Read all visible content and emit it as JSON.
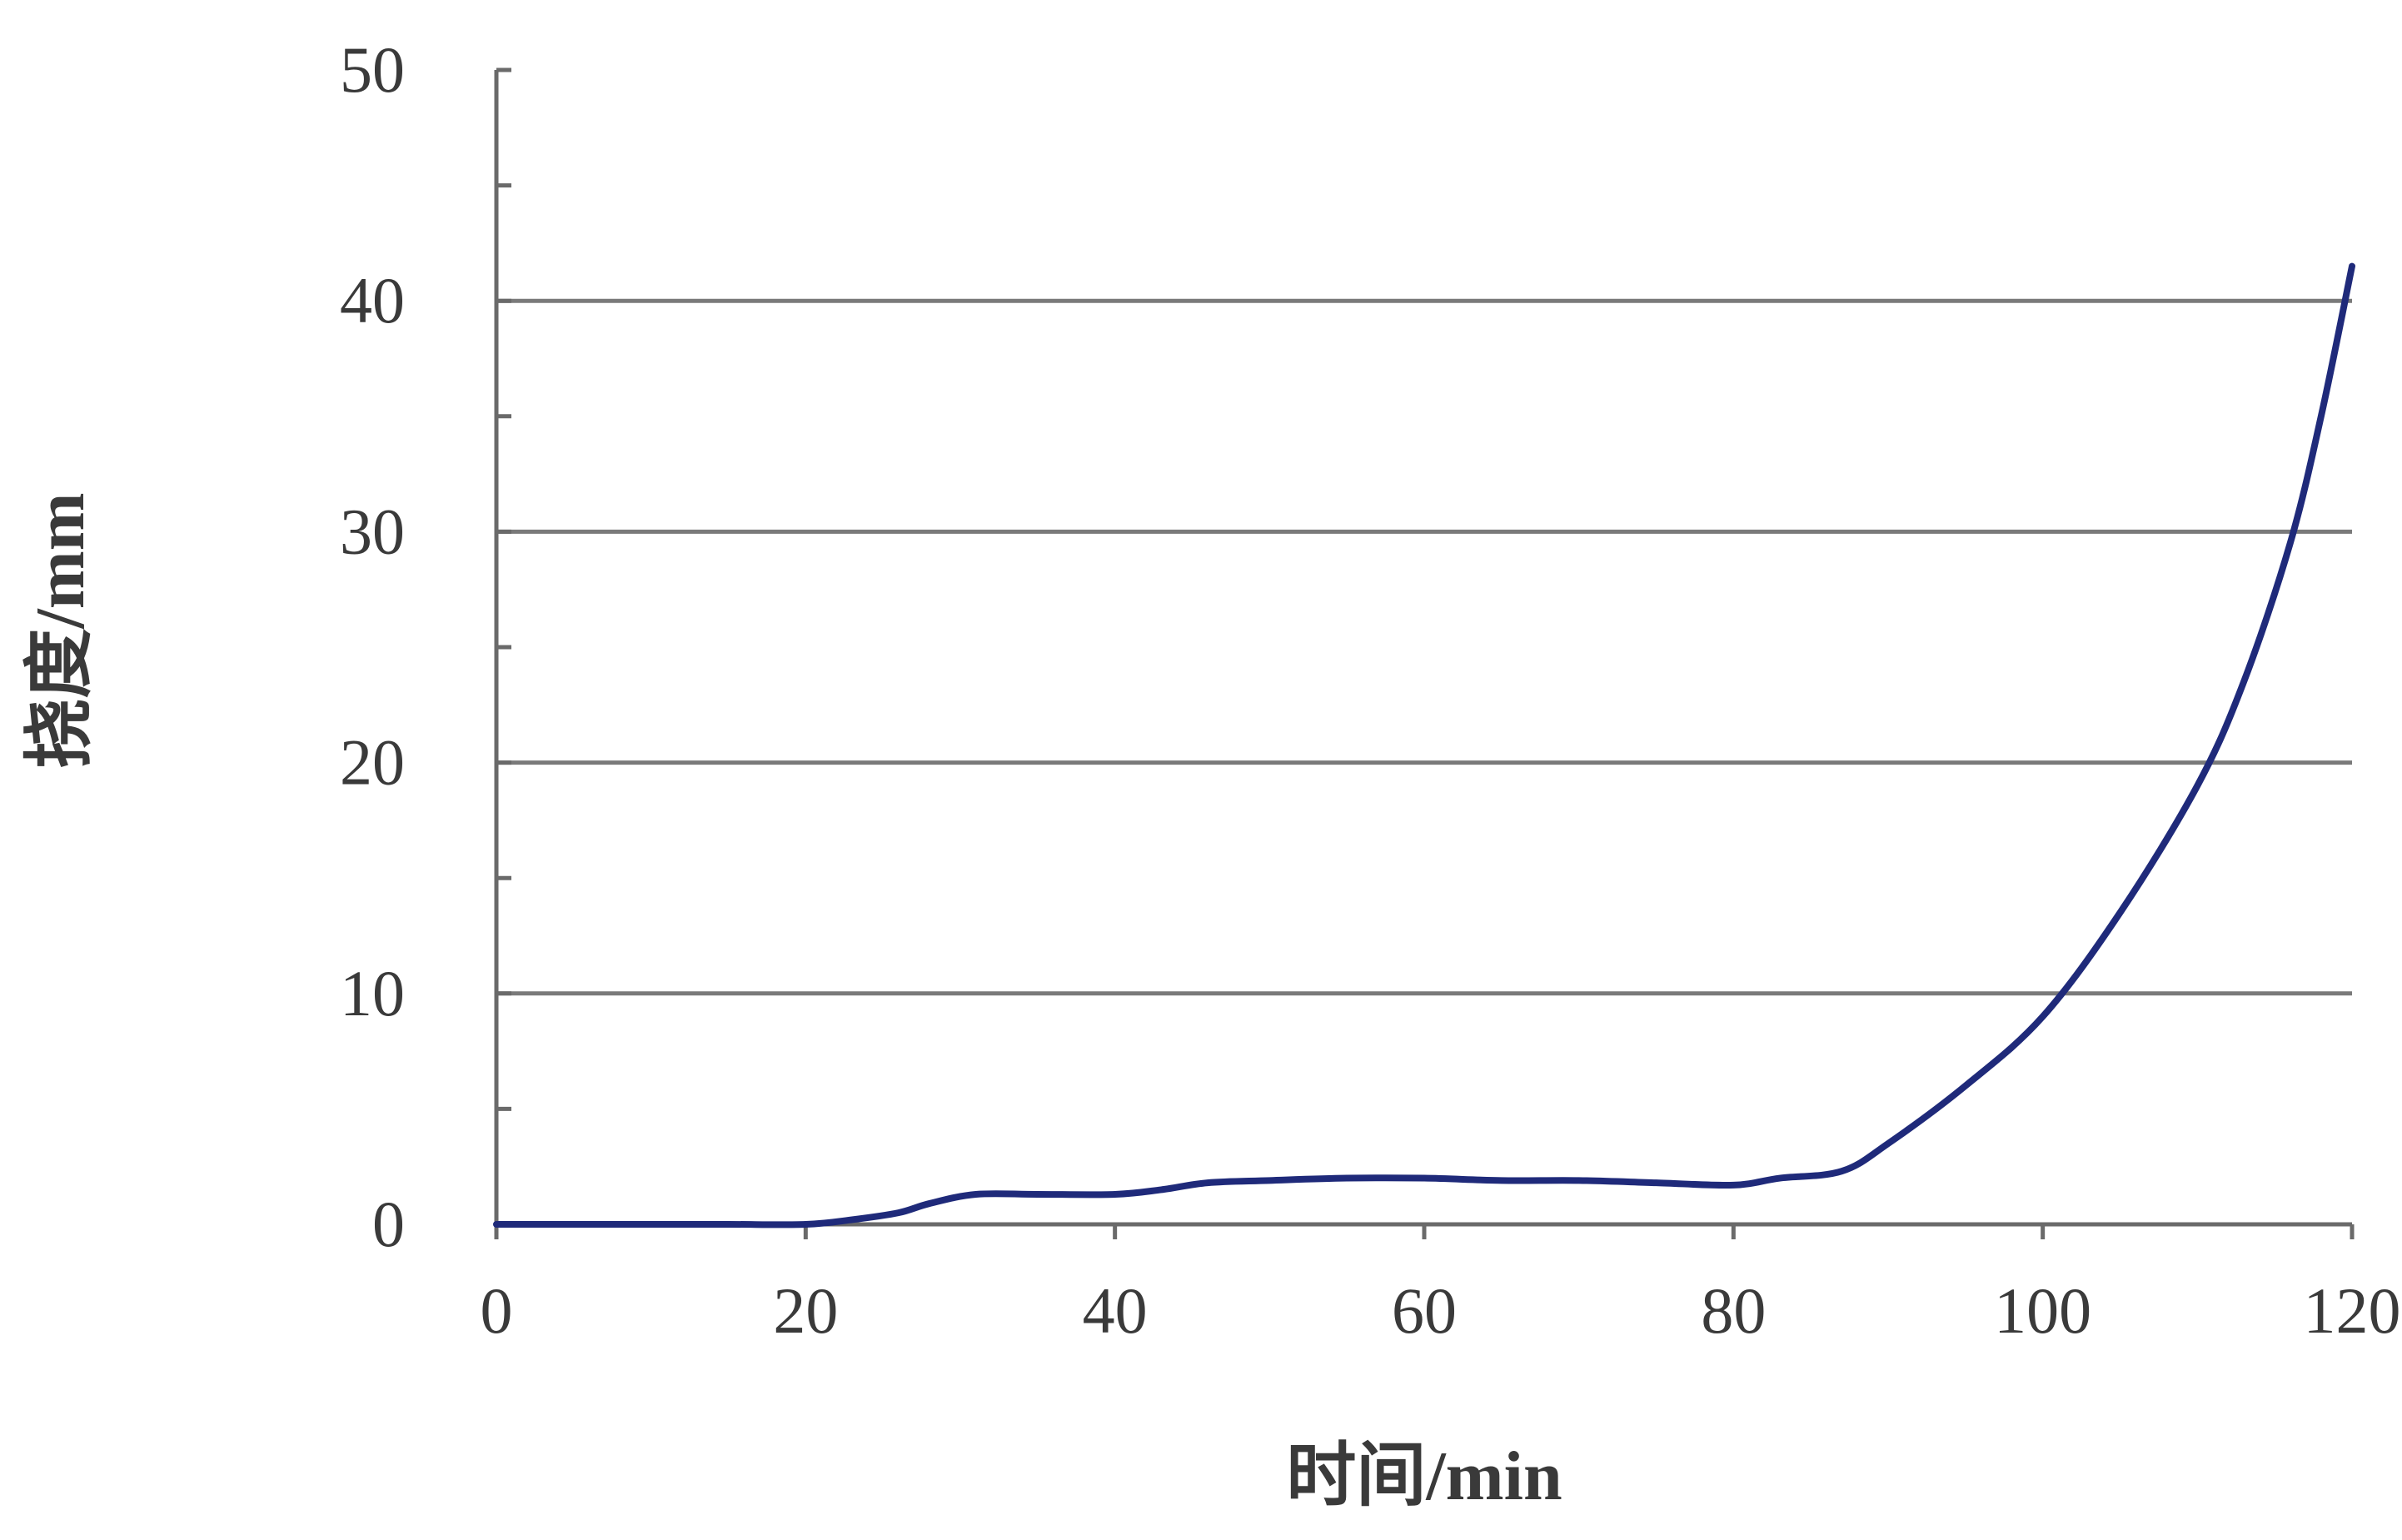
{
  "chart_data": {
    "type": "line",
    "title": "",
    "xlabel": "时间/min",
    "ylabel": "挠度/mm",
    "xlim": [
      0,
      120
    ],
    "ylim": [
      0,
      50
    ],
    "x_ticks": [
      0,
      20,
      40,
      60,
      80,
      100,
      120
    ],
    "y_ticks": [
      0,
      10,
      20,
      30,
      40,
      50
    ],
    "grid": "horizontal",
    "legend": "none",
    "series": [
      {
        "color": "#1f2a7a",
        "x": [
          0,
          5,
          10,
          15,
          20,
          23,
          26,
          28,
          31,
          35,
          40,
          43,
          46,
          50,
          55,
          60,
          65,
          70,
          75,
          80,
          83,
          87,
          90,
          95,
          100,
          105,
          110,
          113,
          116,
          118,
          120
        ],
        "y": [
          0,
          0,
          0,
          0,
          0,
          0.2,
          0.5,
          0.9,
          1.3,
          1.3,
          1.3,
          1.5,
          1.8,
          1.9,
          2.0,
          2.0,
          1.9,
          1.9,
          1.8,
          1.7,
          2.0,
          2.3,
          3.5,
          6.0,
          9.0,
          13.5,
          19.0,
          23.5,
          29.5,
          35.0,
          41.5
        ]
      }
    ]
  }
}
